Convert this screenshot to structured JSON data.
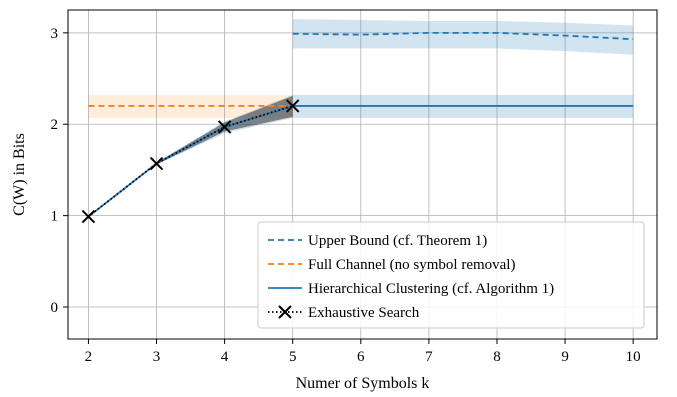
{
  "chart_data": {
    "type": "line",
    "xlabel": "Numer of Symbols k",
    "ylabel": "C(W) in Bits",
    "xlim": [
      1.7,
      10.35
    ],
    "ylim": [
      -0.35,
      3.25
    ],
    "x_ticks": [
      2,
      3,
      4,
      5,
      6,
      7,
      8,
      9,
      10
    ],
    "y_ticks": [
      0,
      1,
      2,
      3
    ],
    "grid": true,
    "legend_position": "bottom-right",
    "series": [
      {
        "name": "Upper Bound (cf. Theorem 1)",
        "style": "dashed",
        "color": "#1f77b4",
        "x": [
          5,
          6,
          7,
          8,
          9,
          10
        ],
        "y": [
          2.99,
          2.98,
          3.0,
          3.0,
          2.97,
          2.93
        ],
        "band_lower": [
          2.83,
          2.83,
          2.83,
          2.83,
          2.8,
          2.76
        ],
        "band_upper": [
          3.15,
          3.14,
          3.13,
          3.13,
          3.11,
          3.08
        ]
      },
      {
        "name": "Full Channel (no symbol removal)",
        "style": "dashed",
        "color": "#ff7f0e",
        "x": [
          2,
          3,
          4,
          5
        ],
        "y": [
          2.2,
          2.2,
          2.2,
          2.2
        ],
        "band_lower": [
          2.07,
          2.07,
          2.07,
          2.07
        ],
        "band_upper": [
          2.32,
          2.32,
          2.32,
          2.32
        ]
      },
      {
        "name": "Hierarchical Clustering (cf. Algorithm 1)",
        "style": "solid",
        "color": "#1f77b4",
        "x": [
          2,
          3,
          4,
          5,
          6,
          7,
          8,
          9,
          10
        ],
        "y": [
          0.99,
          1.57,
          1.97,
          2.2,
          2.2,
          2.2,
          2.2,
          2.2,
          2.2
        ],
        "band_lower": [
          0.99,
          1.56,
          1.9,
          2.07,
          2.07,
          2.07,
          2.07,
          2.07,
          2.07
        ],
        "band_upper": [
          0.99,
          1.58,
          2.03,
          2.32,
          2.32,
          2.32,
          2.32,
          2.32,
          2.32
        ]
      },
      {
        "name": "Exhaustive Search",
        "style": "dotted",
        "marker": "x",
        "color": "#000000",
        "x": [
          2,
          3,
          4,
          5
        ],
        "y": [
          0.99,
          1.57,
          1.97,
          2.2
        ],
        "band_lower": [
          0.99,
          1.56,
          1.92,
          2.08
        ],
        "band_upper": [
          0.99,
          1.58,
          2.02,
          2.31
        ]
      }
    ]
  }
}
